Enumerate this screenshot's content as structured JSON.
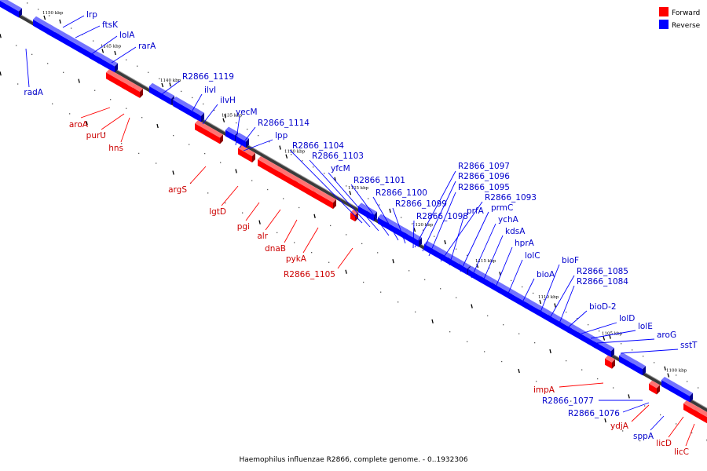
{
  "title": "Haemophilus influenzae R2866, complete genome. - 0..1932306",
  "legend": [
    {
      "label": "Forward",
      "color": "#ff0000"
    },
    {
      "label": "Reverse",
      "color": "#0000ff"
    }
  ],
  "colors": {
    "forward": "#ff0000",
    "reverse": "#0000ff",
    "forward_label": "#cc0000",
    "reverse_label": "#0000cc",
    "axis": "#808080"
  },
  "ticks": [
    "1150 kbp",
    "1145 kbp",
    "1140 kbp",
    "1135 kbp",
    "1130 kbp",
    "1125 kbp",
    "1120 kbp",
    "1115 kbp",
    "1110 kbp",
    "1105 kbp",
    "1100 kbp"
  ],
  "genes": [
    {
      "name": "lrp",
      "strand": "reverse"
    },
    {
      "name": "ftsK",
      "strand": "reverse"
    },
    {
      "name": "lolA",
      "strand": "reverse"
    },
    {
      "name": "rarA",
      "strand": "reverse"
    },
    {
      "name": "radA",
      "strand": "reverse"
    },
    {
      "name": "R2866_1119",
      "strand": "reverse"
    },
    {
      "name": "ilvI",
      "strand": "reverse"
    },
    {
      "name": "ilvH",
      "strand": "reverse"
    },
    {
      "name": "aroA",
      "strand": "forward"
    },
    {
      "name": "purU",
      "strand": "forward"
    },
    {
      "name": "hns",
      "strand": "forward"
    },
    {
      "name": "yecM",
      "strand": "reverse"
    },
    {
      "name": "R2866_1114",
      "strand": "reverse"
    },
    {
      "name": "lpp",
      "strand": "reverse"
    },
    {
      "name": "argS",
      "strand": "forward"
    },
    {
      "name": "R2866_1104",
      "strand": "reverse"
    },
    {
      "name": "R2866_1103",
      "strand": "reverse"
    },
    {
      "name": "yfcM",
      "strand": "reverse"
    },
    {
      "name": "lgtD",
      "strand": "forward"
    },
    {
      "name": "R2866_1101",
      "strand": "reverse"
    },
    {
      "name": "R2866_1100",
      "strand": "reverse"
    },
    {
      "name": "pgi",
      "strand": "forward"
    },
    {
      "name": "R2866_1099",
      "strand": "reverse"
    },
    {
      "name": "R2866_1098",
      "strand": "reverse"
    },
    {
      "name": "alr",
      "strand": "forward"
    },
    {
      "name": "dnaB",
      "strand": "forward"
    },
    {
      "name": "pykA",
      "strand": "forward"
    },
    {
      "name": "R2866_1105",
      "strand": "forward"
    },
    {
      "name": "R2866_1097",
      "strand": "reverse"
    },
    {
      "name": "R2866_1096",
      "strand": "reverse"
    },
    {
      "name": "R2866_1095",
      "strand": "reverse"
    },
    {
      "name": "R2866_1093",
      "strand": "reverse"
    },
    {
      "name": "prfA",
      "strand": "reverse"
    },
    {
      "name": "prmC",
      "strand": "reverse"
    },
    {
      "name": "ychA",
      "strand": "reverse"
    },
    {
      "name": "kdsA",
      "strand": "reverse"
    },
    {
      "name": "hprA",
      "strand": "reverse"
    },
    {
      "name": "lolC",
      "strand": "reverse"
    },
    {
      "name": "bioA",
      "strand": "reverse"
    },
    {
      "name": "bioF",
      "strand": "reverse"
    },
    {
      "name": "R2866_1085",
      "strand": "reverse"
    },
    {
      "name": "R2866_1084",
      "strand": "reverse"
    },
    {
      "name": "bioD-2",
      "strand": "reverse"
    },
    {
      "name": "lolD",
      "strand": "reverse"
    },
    {
      "name": "lolE",
      "strand": "reverse"
    },
    {
      "name": "aroG",
      "strand": "reverse"
    },
    {
      "name": "sstT",
      "strand": "reverse"
    },
    {
      "name": "impA",
      "strand": "forward"
    },
    {
      "name": "R2866_1077",
      "strand": "reverse"
    },
    {
      "name": "R2866_1076",
      "strand": "reverse"
    },
    {
      "name": "ydjA",
      "strand": "forward"
    },
    {
      "name": "sppA",
      "strand": "reverse"
    },
    {
      "name": "licD",
      "strand": "forward"
    },
    {
      "name": "licC",
      "strand": "forward"
    }
  ]
}
